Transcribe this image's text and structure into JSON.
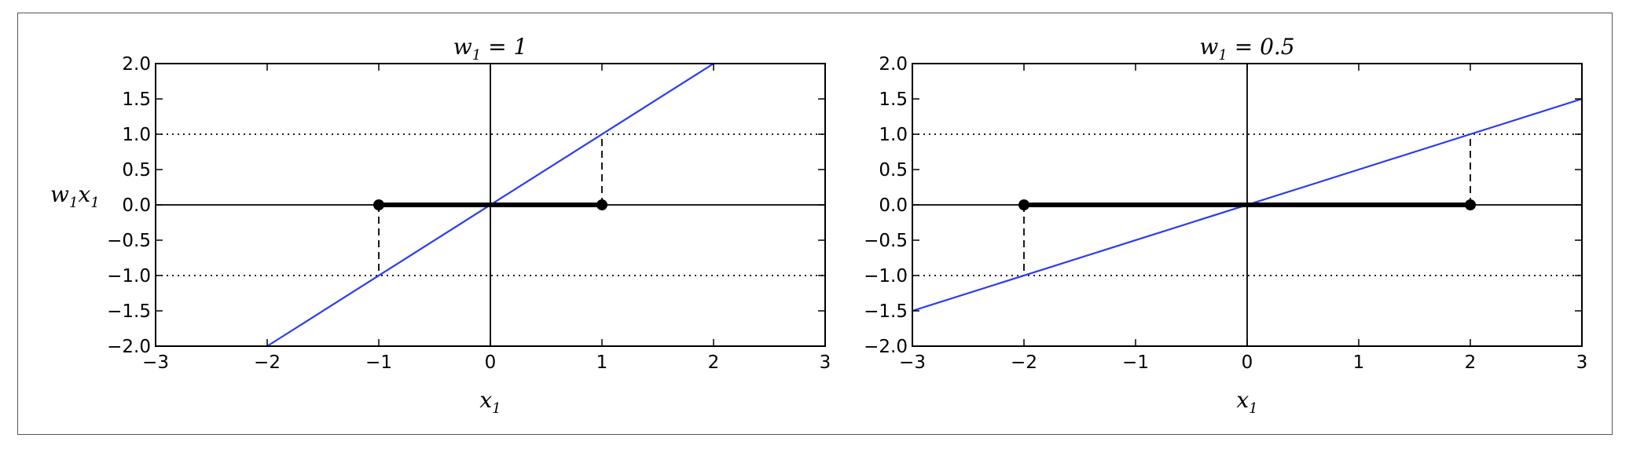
{
  "chart_data": [
    {
      "type": "line",
      "title": {
        "base": "w",
        "sub": "1",
        "rhs": " = 1"
      },
      "xlabel": {
        "base": "x",
        "sub": "1"
      },
      "ylabel": {
        "base": "w",
        "sub": "1",
        "base2": "x",
        "sub2": "1"
      },
      "xlim": [
        -3,
        3
      ],
      "ylim": [
        -2,
        2
      ],
      "xticks": [
        -3,
        -2,
        -1,
        0,
        1,
        2,
        3
      ],
      "xtick_labels": [
        "−3",
        "−2",
        "−1",
        "0",
        "1",
        "2",
        "3"
      ],
      "yticks": [
        2.0,
        1.5,
        1.0,
        0.5,
        0.0,
        -0.5,
        -1.0,
        -1.5,
        -2.0
      ],
      "ytick_labels": [
        "2.0",
        "1.5",
        "1.0",
        "0.5",
        "0.0",
        "−0.5",
        "−1.0",
        "−1.5",
        "−2.0"
      ],
      "weight": 1,
      "line": {
        "color": "#2b3cf0",
        "x": [
          -2,
          2
        ],
        "y": [
          -2,
          2
        ]
      },
      "segment": {
        "x": [
          -1,
          1
        ],
        "y": [
          0,
          0
        ]
      },
      "dashed_drops": [
        {
          "x": -1,
          "from": 0,
          "to": -1
        },
        {
          "x": 1,
          "from": 0,
          "to": 1
        }
      ],
      "dotted_levels": [
        1,
        -1
      ]
    },
    {
      "type": "line",
      "title": {
        "base": "w",
        "sub": "1",
        "rhs": " = 0.5"
      },
      "xlabel": {
        "base": "x",
        "sub": "1"
      },
      "xlim": [
        -3,
        3
      ],
      "ylim": [
        -2,
        2
      ],
      "xticks": [
        -3,
        -2,
        -1,
        0,
        1,
        2,
        3
      ],
      "xtick_labels": [
        "−3",
        "−2",
        "−1",
        "0",
        "1",
        "2",
        "3"
      ],
      "yticks": [
        2.0,
        1.5,
        1.0,
        0.5,
        0.0,
        -0.5,
        -1.0,
        -1.5,
        -2.0
      ],
      "ytick_labels": [
        "2.0",
        "1.5",
        "1.0",
        "0.5",
        "0.0",
        "−0.5",
        "−1.0",
        "−1.5",
        "−2.0"
      ],
      "weight": 0.5,
      "line": {
        "color": "#2b3cf0",
        "x": [
          -3,
          3
        ],
        "y": [
          -1.5,
          1.5
        ]
      },
      "segment": {
        "x": [
          -2,
          2
        ],
        "y": [
          0,
          0
        ]
      },
      "dashed_drops": [
        {
          "x": -2,
          "from": 0,
          "to": -1
        },
        {
          "x": 2,
          "from": 0,
          "to": 1
        }
      ],
      "dotted_levels": [
        1,
        -1
      ]
    }
  ]
}
